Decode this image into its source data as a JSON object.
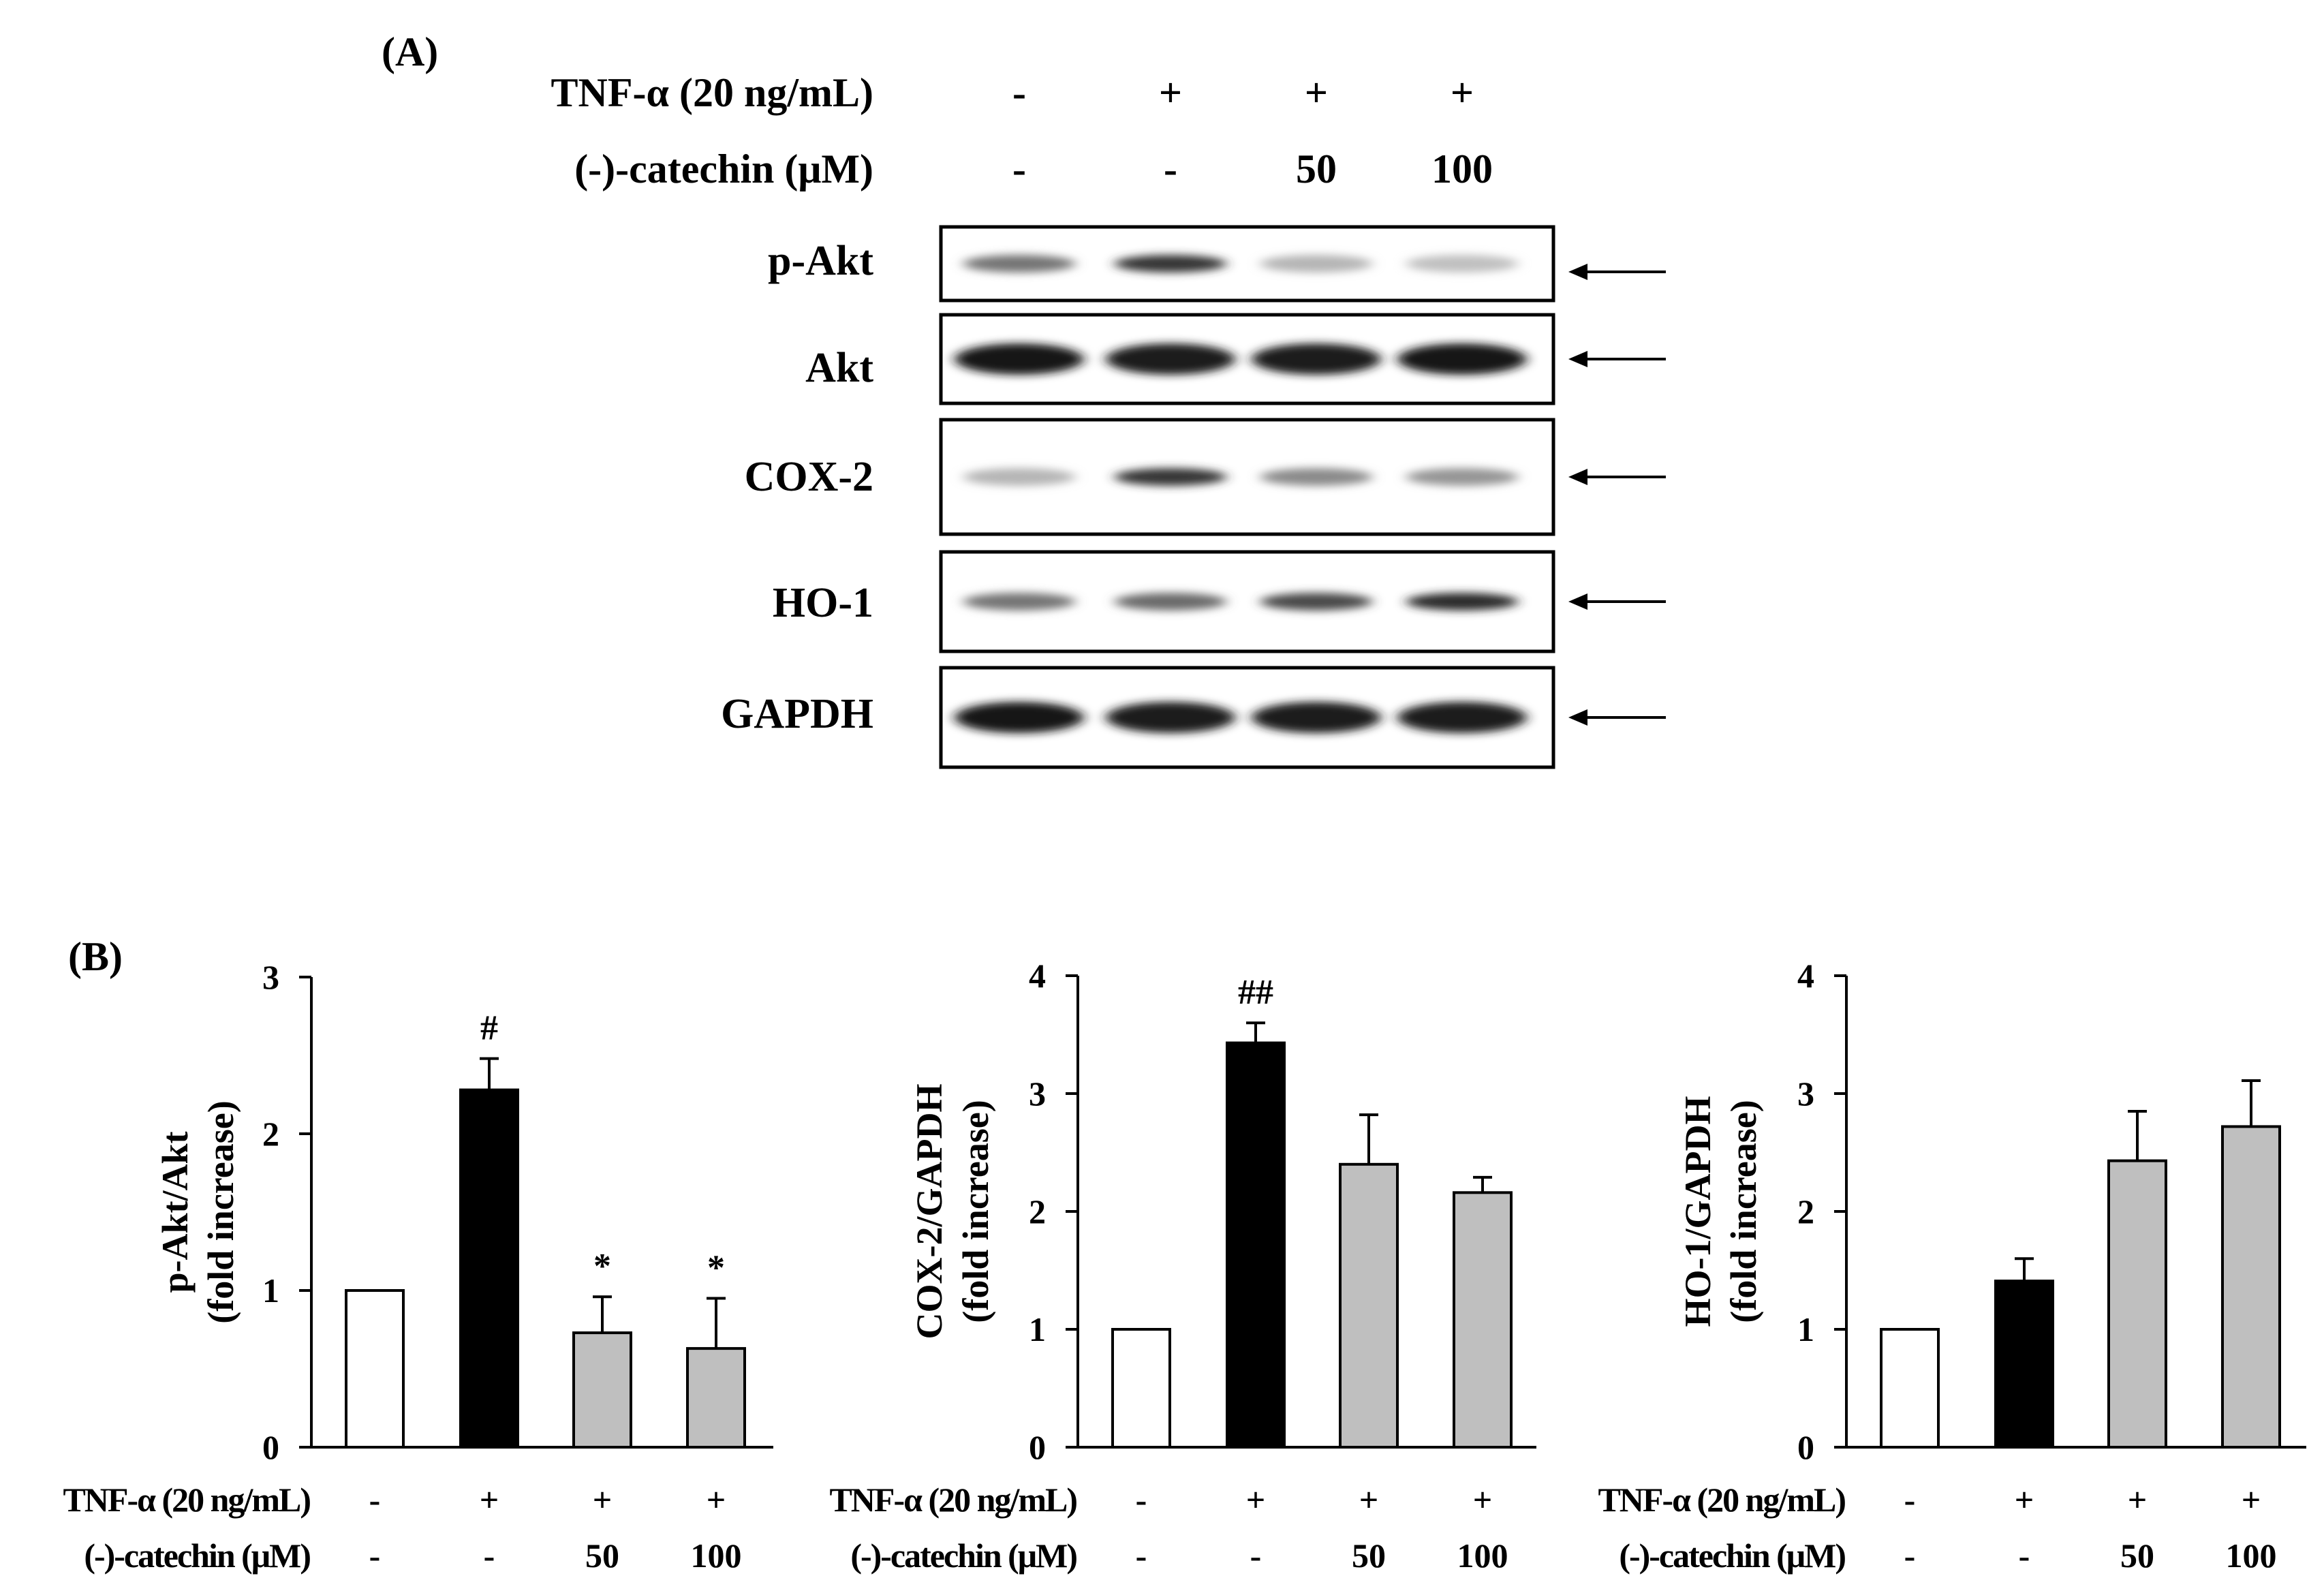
{
  "panel_a": {
    "label": "(A)",
    "treatment_rows": [
      {
        "label": "TNF-α (20 ng/mL)",
        "values": [
          "-",
          "+",
          "+",
          "+"
        ]
      },
      {
        "label": "(-)-catechin (μM)",
        "values": [
          "-",
          "-",
          "50",
          "100"
        ]
      }
    ],
    "blots": [
      {
        "name": "p-Akt",
        "band_intensity": [
          0.55,
          0.85,
          0.25,
          0.2
        ],
        "thick": false
      },
      {
        "name": "Akt",
        "band_intensity": [
          1.0,
          0.95,
          0.95,
          1.0
        ],
        "thick": true
      },
      {
        "name": "COX-2",
        "band_intensity": [
          0.25,
          0.85,
          0.45,
          0.4
        ],
        "thick": false
      },
      {
        "name": "HO-1",
        "band_intensity": [
          0.55,
          0.6,
          0.75,
          0.9
        ],
        "thick": false
      },
      {
        "name": "GAPDH",
        "band_intensity": [
          1.0,
          0.95,
          0.95,
          0.95
        ],
        "thick": true
      }
    ]
  },
  "panel_b": {
    "label": "(B)",
    "bar_colors": [
      "#ffffff",
      "#000000",
      "#bfbfbf",
      "#bfbfbf"
    ],
    "x_rows": [
      {
        "label": "TNF-α (20 ng/mL)",
        "values": [
          "-",
          "+",
          "+",
          "+"
        ]
      },
      {
        "label": "(-)-catechin (μM)",
        "values": [
          "-",
          "-",
          "50",
          "100"
        ]
      }
    ]
  },
  "chart_data": [
    {
      "type": "bar",
      "ylabel": [
        "p-Akt/Akt",
        "(fold increase)"
      ],
      "ylim": [
        0,
        3
      ],
      "yticks": [
        0,
        1,
        2,
        3
      ],
      "values": [
        1.0,
        2.28,
        0.73,
        0.63
      ],
      "errors": [
        0,
        0.2,
        0.23,
        0.32
      ],
      "annotations": [
        "",
        "#",
        "*",
        "*"
      ]
    },
    {
      "type": "bar",
      "ylabel": [
        "COX-2/GAPDH",
        "(fold increase)"
      ],
      "ylim": [
        0,
        4
      ],
      "yticks": [
        0,
        1,
        2,
        3,
        4
      ],
      "values": [
        1.0,
        3.43,
        2.4,
        2.16
      ],
      "errors": [
        0,
        0.17,
        0.42,
        0.13
      ],
      "annotations": [
        "",
        "##",
        "",
        ""
      ]
    },
    {
      "type": "bar",
      "ylabel": [
        "HO-1/GAPDH",
        "(fold increase)"
      ],
      "ylim": [
        0,
        4
      ],
      "yticks": [
        0,
        1,
        2,
        3,
        4
      ],
      "values": [
        1.0,
        1.41,
        2.43,
        2.72
      ],
      "errors": [
        0,
        0.19,
        0.42,
        0.39
      ],
      "annotations": [
        "",
        "",
        "",
        ""
      ]
    }
  ]
}
